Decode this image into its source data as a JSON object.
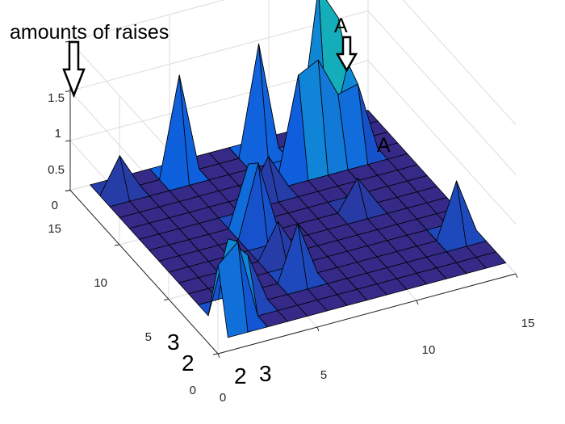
{
  "chart_data": {
    "type": "surface",
    "z_ticks": [
      "0",
      "0.5",
      "1",
      "1.5"
    ],
    "y_ticks": [
      "0",
      "5",
      "10",
      "15"
    ],
    "x_ticks": [
      "0",
      "5",
      "10",
      "15"
    ],
    "xlim": [
      0,
      15
    ],
    "ylim": [
      0,
      15
    ],
    "zlim": [
      0,
      1.5
    ],
    "grid": true,
    "colormap": "parula",
    "zmax_color": 1.5,
    "peaks": [
      {
        "x": 1,
        "y": 2,
        "z": 0.62
      },
      {
        "x": 2,
        "y": 2,
        "z": 0.8
      },
      {
        "x": 2,
        "y": 3,
        "z": 0.72
      },
      {
        "x": 3,
        "y": 3,
        "z": 0.5
      },
      {
        "x": 6,
        "y": 4,
        "z": 0.55
      },
      {
        "x": 6,
        "y": 6,
        "z": 0.35
      },
      {
        "x": 8,
        "y": 11,
        "z": 0.35
      },
      {
        "x": 11,
        "y": 8,
        "z": 0.3
      },
      {
        "x": 2,
        "y": 14,
        "z": 0.35
      },
      {
        "x": 5,
        "y": 14,
        "z": 1.0
      },
      {
        "x": 14,
        "y": 4,
        "z": 0.55
      },
      {
        "x": 6,
        "y": 8,
        "z": 0.72
      },
      {
        "x": 6,
        "y": 9,
        "z": 0.6
      },
      {
        "x": 9,
        "y": 14,
        "z": 1.1
      },
      {
        "x": 10,
        "y": 12,
        "z": 0.95
      },
      {
        "x": 11,
        "y": 12,
        "z": 1.05
      },
      {
        "x": 11,
        "y": 13,
        "z": 0.6
      },
      {
        "x": 12,
        "y": 12,
        "z": 0.65
      },
      {
        "x": 12,
        "y": 14,
        "z": 1.5
      },
      {
        "x": 13,
        "y": 13,
        "z": 0.8
      },
      {
        "x": 13,
        "y": 14,
        "z": 1.15
      },
      {
        "x": 13,
        "y": 12,
        "z": 0.7
      }
    ],
    "annotations": {
      "title": "amounts of raises",
      "peak_label_top": "A",
      "peak_label_right": "A",
      "y_mark_3": "3",
      "y_mark_2": "2",
      "x_mark_2": "2",
      "x_mark_3": "3"
    }
  }
}
